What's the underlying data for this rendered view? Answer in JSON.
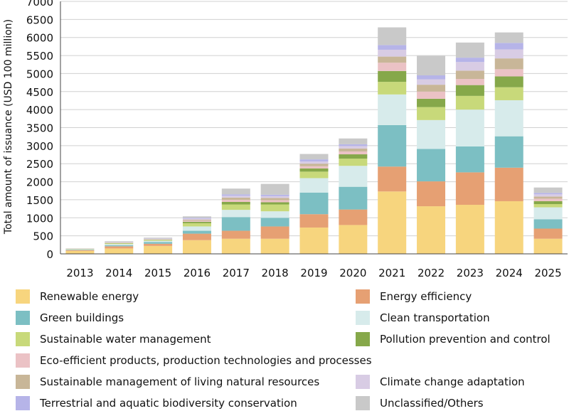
{
  "chart_data": {
    "type": "bar",
    "stacked": true,
    "ylabel": "Total amount of issuance (USD 100 million)",
    "ylim": [
      0,
      7000
    ],
    "yticks": [
      0,
      500,
      1000,
      1500,
      2000,
      2500,
      3000,
      3500,
      4000,
      4500,
      5000,
      5500,
      6000,
      6500,
      7000
    ],
    "grid": "horizontal",
    "legend_position": "bottom",
    "categories": [
      "2013",
      "2014",
      "2015",
      "2016",
      "2017",
      "2018",
      "2019",
      "2020",
      "2021",
      "2022",
      "2023",
      "2024",
      "2025"
    ],
    "series": [
      {
        "name": "Renewable energy",
        "color": "#f7d57e",
        "values": [
          80,
          150,
          220,
          380,
          420,
          420,
          730,
          800,
          1730,
          1320,
          1360,
          1460,
          420
        ]
      },
      {
        "name": "Energy efficiency",
        "color": "#e6a073",
        "values": [
          20,
          60,
          60,
          180,
          220,
          340,
          370,
          430,
          690,
          690,
          900,
          930,
          280
        ]
      },
      {
        "name": "Green buildings",
        "color": "#7cbfc3",
        "values": [
          10,
          30,
          50,
          80,
          380,
          240,
          600,
          630,
          1150,
          900,
          720,
          870,
          260
        ]
      },
      {
        "name": "Clean transportation",
        "color": "#d7ebeb",
        "values": [
          10,
          30,
          30,
          120,
          200,
          180,
          400,
          580,
          850,
          800,
          1020,
          1000,
          330
        ]
      },
      {
        "name": "Sustainable water management",
        "color": "#c8d97a",
        "values": [
          5,
          20,
          20,
          90,
          150,
          190,
          180,
          200,
          350,
          360,
          380,
          360,
          90
        ]
      },
      {
        "name": "Pollution prevention and control",
        "color": "#86a84a",
        "values": [
          5,
          10,
          10,
          40,
          70,
          60,
          90,
          120,
          300,
          230,
          300,
          300,
          80
        ]
      },
      {
        "name": "Eco-efficient products, production technologies and processes",
        "color": "#ebc2c5",
        "values": [
          5,
          10,
          10,
          30,
          60,
          60,
          60,
          80,
          230,
          200,
          170,
          200,
          70
        ]
      },
      {
        "name": "Sustainable management of living natural resources",
        "color": "#c8b698",
        "values": [
          5,
          10,
          10,
          30,
          60,
          60,
          70,
          80,
          170,
          190,
          230,
          300,
          60
        ]
      },
      {
        "name": "Climate change adaptation",
        "color": "#d8cce4",
        "values": [
          0,
          5,
          10,
          30,
          50,
          50,
          60,
          70,
          190,
          150,
          240,
          250,
          60
        ]
      },
      {
        "name": "Terrestrial and aquatic biodiversity conservation",
        "color": "#b6b4e8",
        "values": [
          0,
          5,
          5,
          20,
          40,
          40,
          60,
          50,
          130,
          110,
          120,
          180,
          40
        ]
      },
      {
        "name": "Unclassified/Others",
        "color": "#c9c9c9",
        "values": [
          10,
          20,
          25,
          40,
          160,
          300,
          150,
          160,
          490,
          540,
          420,
          290,
          150
        ]
      }
    ]
  }
}
